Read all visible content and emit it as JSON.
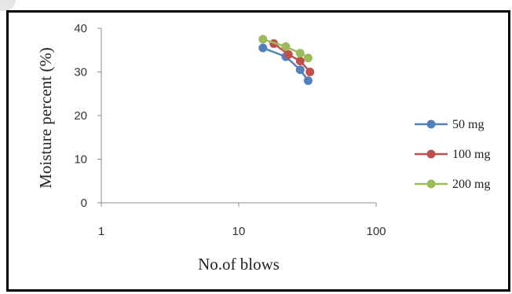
{
  "chart_data": {
    "type": "line",
    "xlabel": "No.of blows",
    "ylabel": "Moisture percent (%)",
    "x_scale": "log",
    "xlim": [
      1,
      100
    ],
    "ylim": [
      0,
      40
    ],
    "x_ticks": [
      "1",
      "10",
      "100"
    ],
    "y_ticks": [
      "0",
      "10",
      "20",
      "30",
      "40"
    ],
    "grid": false,
    "legend_position": "right",
    "series": [
      {
        "name": "50 mg",
        "color": "#4f81bd",
        "points": [
          [
            15,
            35.5
          ],
          [
            22,
            33.5
          ],
          [
            28,
            30.5
          ],
          [
            32,
            28
          ]
        ]
      },
      {
        "name": "100 mg",
        "color": "#c0504d",
        "points": [
          [
            18,
            36.5
          ],
          [
            23,
            34
          ],
          [
            28,
            32.5
          ],
          [
            33,
            30
          ]
        ]
      },
      {
        "name": "200 mg",
        "color": "#9bbb59",
        "points": [
          [
            15,
            37.5
          ],
          [
            22,
            35.8
          ],
          [
            28,
            34.3
          ],
          [
            32,
            33.2
          ]
        ]
      }
    ]
  }
}
